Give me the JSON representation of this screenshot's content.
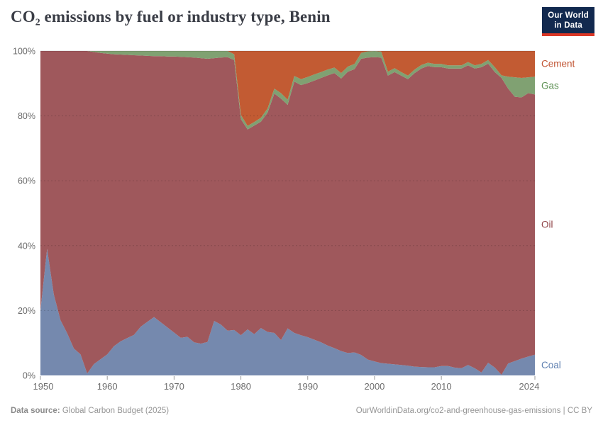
{
  "header": {
    "title": "CO₂ emissions by fuel or industry type, Benin",
    "logo": {
      "line1": "Our World",
      "line2": "in Data"
    }
  },
  "footer": {
    "source_label": "Data source:",
    "source_value": " Global Carbon Budget (2025)",
    "rights": "OurWorldinData.org/co2-and-greenhouse-gas-emissions | CC BY"
  },
  "chart_data": {
    "type": "area",
    "stacked_percent": true,
    "title": "CO₂ emissions by fuel or industry type, Benin",
    "xlabel": "",
    "ylabel": "",
    "ylim": [
      0,
      100
    ],
    "grid": true,
    "legend_position": "right",
    "yticks": [
      {
        "value": 0,
        "label": "0%"
      },
      {
        "value": 20,
        "label": "20%"
      },
      {
        "value": 40,
        "label": "40%"
      },
      {
        "value": 60,
        "label": "60%"
      },
      {
        "value": 80,
        "label": "80%"
      },
      {
        "value": 100,
        "label": "100%"
      }
    ],
    "xticks": [
      1950,
      1960,
      1970,
      1980,
      1990,
      2000,
      2010,
      2024
    ],
    "x": [
      1950,
      1951,
      1952,
      1953,
      1954,
      1955,
      1956,
      1957,
      1958,
      1959,
      1960,
      1961,
      1962,
      1963,
      1964,
      1965,
      1966,
      1967,
      1968,
      1969,
      1970,
      1971,
      1972,
      1973,
      1974,
      1975,
      1976,
      1977,
      1978,
      1979,
      1980,
      1981,
      1982,
      1983,
      1984,
      1985,
      1986,
      1987,
      1988,
      1989,
      1990,
      1991,
      1992,
      1993,
      1994,
      1995,
      1996,
      1997,
      1998,
      1999,
      2000,
      2001,
      2002,
      2003,
      2004,
      2005,
      2006,
      2007,
      2008,
      2009,
      2010,
      2011,
      2012,
      2013,
      2014,
      2015,
      2016,
      2017,
      2018,
      2019,
      2020,
      2021,
      2022,
      2023,
      2024
    ],
    "series": [
      {
        "name": "Coal",
        "color": "#7589ae",
        "label_color": "#5e7fb0",
        "values": [
          20,
          39,
          25,
          17,
          13,
          8.3,
          6.5,
          0.6,
          3.5,
          5,
          6.5,
          9,
          10.5,
          11.5,
          12.5,
          15,
          16.5,
          18,
          16.4,
          14.8,
          13.2,
          11.6,
          11.9,
          10.2,
          9.8,
          10.3,
          16.8,
          15.7,
          13.8,
          14,
          12.4,
          14.2,
          12.7,
          14.6,
          13.4,
          13.1,
          10.9,
          14.5,
          13.1,
          12.4,
          11.8,
          11,
          10.2,
          9.2,
          8.4,
          7.5,
          6.9,
          7.1,
          6.3,
          4.9,
          4.3,
          3.8,
          3.6,
          3.4,
          3.2,
          3,
          2.7,
          2.6,
          2.5,
          2.5,
          2.9,
          2.9,
          2.4,
          2.2,
          3.2,
          2.2,
          0.9,
          3.9,
          2.4,
          0.2,
          3.7,
          4.4,
          5.2,
          5.8,
          6.4
        ]
      },
      {
        "name": "Oil",
        "color": "#9f585c",
        "label_color": "#8e4145",
        "values": [
          80,
          61,
          75,
          83,
          87,
          91.7,
          93.5,
          99.4,
          96.2,
          94.4,
          92.7,
          90,
          88.4,
          87.3,
          86.2,
          83.6,
          82,
          80.4,
          82,
          83.5,
          85.1,
          86.6,
          86.2,
          87.8,
          88,
          87.3,
          81,
          82.3,
          84.3,
          83.2,
          66.6,
          61.6,
          64.3,
          63.6,
          67.6,
          73.8,
          74.4,
          68.9,
          77.5,
          77.1,
          78.3,
          79.9,
          81.5,
          83.3,
          84.8,
          84,
          86.7,
          87.3,
          91.3,
          93.1,
          93.8,
          94.2,
          88.8,
          90.1,
          89.2,
          88.3,
          90.5,
          92,
          92.9,
          92.5,
          92.1,
          91.7,
          92.2,
          92.4,
          92.4,
          92.4,
          94.1,
          92.2,
          91.1,
          91.5,
          84.7,
          81.5,
          80.5,
          81.2,
          80.2
        ]
      },
      {
        "name": "Gas",
        "color": "#80a172",
        "label_color": "#5b8f51",
        "values": [
          0,
          0,
          0,
          0,
          0,
          0,
          0,
          0,
          0.3,
          0.6,
          0.8,
          1,
          1.1,
          1.2,
          1.3,
          1.4,
          1.5,
          1.6,
          1.6,
          1.7,
          1.7,
          1.8,
          1.9,
          2,
          2.2,
          2.4,
          2.2,
          2,
          1.9,
          1.8,
          1.3,
          1.1,
          1.1,
          1.2,
          1.3,
          1.5,
          1.7,
          1.6,
          1.7,
          1.8,
          1.9,
          1.9,
          1.8,
          1.8,
          1.7,
          1.7,
          1.6,
          1.6,
          1.8,
          1.9,
          1.9,
          1.8,
          1.2,
          1.2,
          1.1,
          1.1,
          1.1,
          1.1,
          1,
          1,
          1,
          1,
          1,
          1,
          1,
          1,
          1,
          1.1,
          1.5,
          0.8,
          3.7,
          6,
          6,
          4.9,
          5.5
        ]
      },
      {
        "name": "Cement",
        "color": "#c25b33",
        "label_color": "#c0512f",
        "values": [
          0,
          0,
          0,
          0,
          0,
          0,
          0,
          0,
          0,
          0,
          0,
          0,
          0,
          0,
          0,
          0,
          0,
          0,
          0,
          0,
          0,
          0,
          0,
          0,
          0,
          0,
          0,
          0,
          0,
          1,
          19.7,
          23.1,
          21.9,
          20.6,
          17.7,
          11.6,
          13,
          15,
          7.7,
          8.7,
          8,
          7.2,
          6.5,
          5.7,
          5.1,
          6.8,
          4.8,
          4,
          0.6,
          0.1,
          0,
          0.2,
          6.4,
          5.3,
          6.5,
          7.6,
          5.7,
          4.3,
          3.6,
          4,
          4,
          4.4,
          4.4,
          4.4,
          3.4,
          4.4,
          4,
          2.8,
          5,
          7.5,
          7.9,
          8.1,
          8.3,
          8.1,
          7.9
        ]
      }
    ]
  }
}
